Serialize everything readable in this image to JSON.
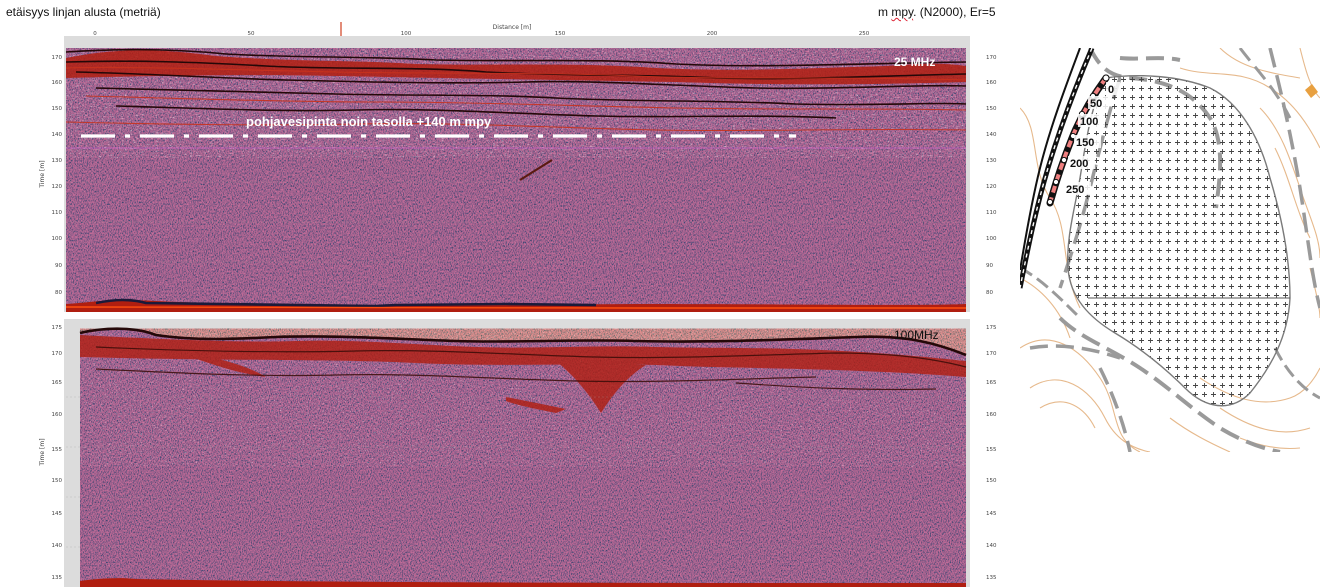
{
  "header": {
    "left_text": "etäisyys linjan alusta (metriä)",
    "right_prefix": "m ",
    "right_squiggly": "mpy",
    "right_suffix": ". (N2000), Er=5"
  },
  "top_profile": {
    "x_axis_label": "Distance [m]",
    "x_ticks": [
      "0",
      "50",
      "100",
      "150",
      "200",
      "250"
    ],
    "y_axis_label": "Time [m]",
    "y_ticks": [
      "170",
      "160",
      "150",
      "140",
      "130",
      "120",
      "110",
      "100",
      "90",
      "80"
    ],
    "frequency_label": "25 MHz",
    "groundwater_label": "pohjavesipinta noin tasolla +140 m mpy",
    "groundwater_level": 140
  },
  "bottom_profile": {
    "y_axis_label": "Time [m]",
    "y_ticks": [
      "175",
      "170",
      "165",
      "160",
      "155",
      "150",
      "145",
      "140",
      "135"
    ],
    "frequency_label": "100MHz"
  },
  "map": {
    "distance_labels": [
      "0",
      "50",
      "100",
      "150",
      "200",
      "250"
    ]
  },
  "colors": {
    "radar_base": "#8c8cee",
    "reflector_red": "#b01e10",
    "reflector_dark": "#240808",
    "map_contour": "#e6b98c",
    "map_road": "#9a9a9a"
  }
}
